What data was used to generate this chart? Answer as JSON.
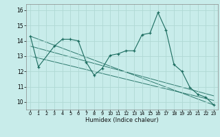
{
  "xlabel": "Humidex (Indice chaleur)",
  "background_color": "#c8ecea",
  "grid_color": "#b0d8d4",
  "line_color": "#1a6b5e",
  "xlim": [
    -0.5,
    23.5
  ],
  "ylim": [
    9.5,
    16.4
  ],
  "xticks": [
    0,
    1,
    2,
    3,
    4,
    5,
    6,
    7,
    8,
    9,
    10,
    11,
    12,
    13,
    14,
    15,
    16,
    17,
    18,
    19,
    20,
    21,
    22,
    23
  ],
  "yticks": [
    10,
    11,
    12,
    13,
    14,
    15,
    16
  ],
  "series_main": {
    "x": [
      0,
      1,
      3,
      4,
      5,
      6,
      7,
      8,
      9,
      10,
      11,
      12,
      13,
      14,
      15,
      16,
      17,
      18,
      19,
      20,
      21,
      22,
      23
    ],
    "y": [
      14.3,
      12.3,
      13.65,
      14.1,
      14.1,
      14.0,
      12.6,
      11.75,
      12.2,
      13.05,
      13.15,
      13.35,
      13.35,
      14.4,
      14.5,
      15.85,
      14.7,
      12.45,
      12.0,
      10.95,
      10.5,
      10.3,
      9.8
    ]
  },
  "series_lines": [
    {
      "x": [
        0,
        23
      ],
      "y": [
        14.3,
        9.8
      ]
    },
    {
      "x": [
        0,
        23
      ],
      "y": [
        13.65,
        10.4
      ]
    },
    {
      "x": [
        0,
        23
      ],
      "y": [
        13.0,
        10.1
      ]
    }
  ]
}
